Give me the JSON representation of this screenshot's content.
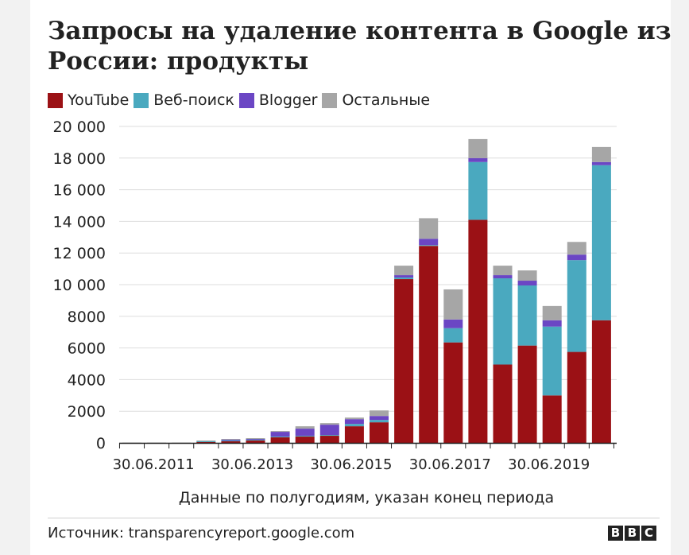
{
  "title": "Запросы на удаление контента в Google из России: продукты",
  "legend": [
    {
      "label": "YouTube",
      "color": "#9b1115"
    },
    {
      "label": "Веб-поиск",
      "color": "#4aa9bf"
    },
    {
      "label": "Blogger",
      "color": "#6b46c4"
    },
    {
      "label": "Остальные",
      "color": "#a6a6a6"
    }
  ],
  "source": "Источник: transparencyreport.google.com",
  "logo": [
    "B",
    "B",
    "C"
  ],
  "chart_data": {
    "type": "bar",
    "stacked": true,
    "xlabel": "Данные по полугодиям, указан конец периода",
    "ylim": [
      0,
      20000
    ],
    "yticks": [
      0,
      2000,
      4000,
      6000,
      8000,
      10000,
      12000,
      14000,
      16000,
      18000,
      20000
    ],
    "ytick_labels": [
      "0",
      "2000",
      "4000",
      "6000",
      "8000",
      "10 000",
      "12 000",
      "14 000",
      "16 000",
      "18 000",
      "20 000"
    ],
    "xtick_labels": [
      {
        "label": "30.06.2011",
        "index": 1
      },
      {
        "label": "30.06.2013",
        "index": 5
      },
      {
        "label": "30.06.2015",
        "index": 9
      },
      {
        "label": "30.06.2017",
        "index": 13
      },
      {
        "label": "30.06.2019",
        "index": 17
      }
    ],
    "n_categories": 20,
    "series": [
      {
        "name": "YouTube",
        "color": "#9b1115",
        "values": [
          0,
          0,
          0,
          50,
          100,
          150,
          350,
          400,
          450,
          1050,
          1300,
          10350,
          12450,
          6350,
          14100,
          4950,
          6150,
          3000,
          5750,
          7750
        ]
      },
      {
        "name": "Веб-поиск",
        "color": "#4aa9bf",
        "values": [
          0,
          0,
          0,
          50,
          50,
          50,
          50,
          50,
          50,
          150,
          150,
          100,
          50,
          900,
          3650,
          5450,
          3800,
          4350,
          5800,
          9800
        ]
      },
      {
        "name": "Blogger",
        "color": "#6b46c4",
        "values": [
          0,
          0,
          0,
          0,
          50,
          50,
          300,
          450,
          650,
          300,
          250,
          150,
          400,
          550,
          250,
          200,
          300,
          400,
          350,
          200
        ]
      },
      {
        "name": "Остальные",
        "color": "#a6a6a6",
        "values": [
          20,
          20,
          20,
          50,
          50,
          50,
          50,
          150,
          100,
          100,
          350,
          600,
          1300,
          1900,
          1200,
          600,
          650,
          900,
          800,
          950
        ]
      }
    ]
  }
}
